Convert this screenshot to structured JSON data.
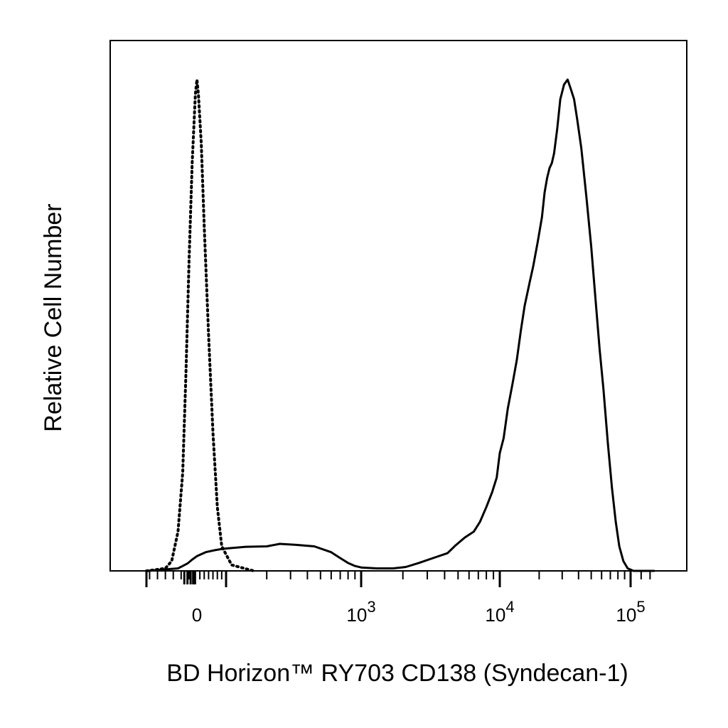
{
  "chart_data": {
    "type": "area",
    "xlabel": "BD Horizon™ RY703  CD138 (Syndecan-1)",
    "ylabel": "Relative Cell Number",
    "x_scale": "biexponential",
    "x_ticks": [
      {
        "value": 0,
        "base": "0",
        "exp": ""
      },
      {
        "value": 1000,
        "base": "10",
        "exp": "3"
      },
      {
        "value": 10000,
        "base": "10",
        "exp": "4"
      },
      {
        "value": 100000,
        "base": "10",
        "exp": "5"
      }
    ],
    "y_ticks": [],
    "grid": false,
    "legend": "none",
    "ylim": [
      0,
      100
    ],
    "series": [
      {
        "style": "dotted",
        "color": "#000000",
        "points": [
          [
            -160,
            0
          ],
          [
            -100,
            0.5
          ],
          [
            -80,
            2
          ],
          [
            -60,
            8
          ],
          [
            -45,
            20
          ],
          [
            -35,
            40
          ],
          [
            -25,
            63
          ],
          [
            -15,
            83
          ],
          [
            -5,
            97
          ],
          [
            0,
            100
          ],
          [
            5,
            97
          ],
          [
            15,
            87
          ],
          [
            25,
            70
          ],
          [
            40,
            48
          ],
          [
            55,
            28
          ],
          [
            70,
            13
          ],
          [
            85,
            5
          ],
          [
            110,
            1.2
          ],
          [
            160,
            0
          ]
        ]
      },
      {
        "style": "solid",
        "color": "#000000",
        "points": [
          [
            -160,
            0
          ],
          [
            -60,
            0.5
          ],
          [
            -30,
            1.5
          ],
          [
            -15,
            2.3
          ],
          [
            0,
            3
          ],
          [
            30,
            3.8
          ],
          [
            60,
            4.2
          ],
          [
            90,
            4.5
          ],
          [
            140,
            4.9
          ],
          [
            200,
            5.0
          ],
          [
            250,
            5.5
          ],
          [
            330,
            5.3
          ],
          [
            450,
            5.0
          ],
          [
            600,
            3.8
          ],
          [
            700,
            2.6
          ],
          [
            800,
            1.6
          ],
          [
            900,
            1.0
          ],
          [
            1000,
            0.7
          ],
          [
            1300,
            0.5
          ],
          [
            1700,
            0.5
          ],
          [
            2100,
            0.8
          ],
          [
            2600,
            1.6
          ],
          [
            3300,
            2.6
          ],
          [
            4200,
            3.6
          ],
          [
            4800,
            5.2
          ],
          [
            5600,
            6.8
          ],
          [
            6500,
            8.0
          ],
          [
            7200,
            10
          ],
          [
            8000,
            13
          ],
          [
            8800,
            16
          ],
          [
            9500,
            19
          ],
          [
            10000,
            24
          ],
          [
            10700,
            27
          ],
          [
            11500,
            33
          ],
          [
            12500,
            38
          ],
          [
            13500,
            43
          ],
          [
            14500,
            49
          ],
          [
            15500,
            54
          ],
          [
            17000,
            59
          ],
          [
            18000,
            62
          ],
          [
            19500,
            67
          ],
          [
            21000,
            72
          ],
          [
            22000,
            77
          ],
          [
            23000,
            80
          ],
          [
            24000,
            82
          ],
          [
            25000,
            83
          ],
          [
            26000,
            85
          ],
          [
            27500,
            90
          ],
          [
            29000,
            96
          ],
          [
            31000,
            99
          ],
          [
            33000,
            100
          ],
          [
            35000,
            98
          ],
          [
            37000,
            96
          ],
          [
            39000,
            92
          ],
          [
            42000,
            86
          ],
          [
            46000,
            76
          ],
          [
            50000,
            66
          ],
          [
            54000,
            55
          ],
          [
            58000,
            45
          ],
          [
            62000,
            37
          ],
          [
            67000,
            26
          ],
          [
            72000,
            17
          ],
          [
            77000,
            10
          ],
          [
            82000,
            5
          ],
          [
            88000,
            2
          ],
          [
            95000,
            0.5
          ],
          [
            105000,
            0
          ],
          [
            160000,
            0
          ]
        ]
      }
    ]
  }
}
